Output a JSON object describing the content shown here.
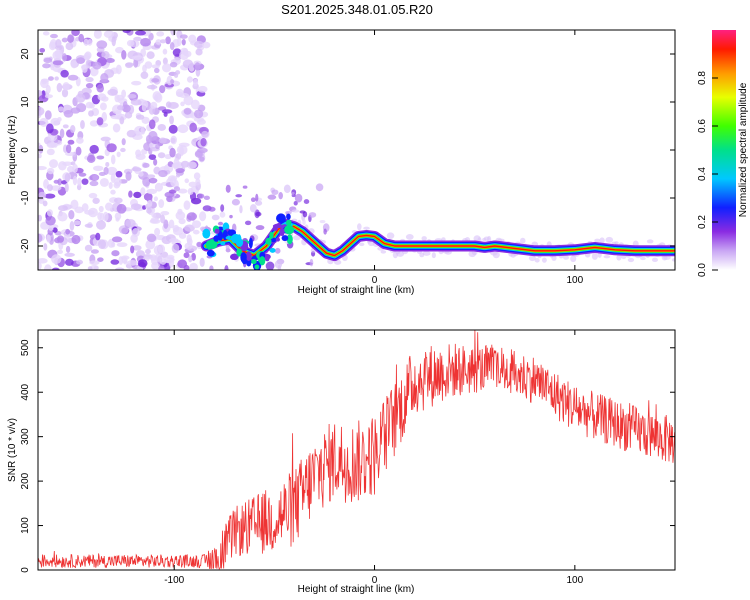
{
  "title": "S201.2025.348.01.05.R20",
  "chart_data": [
    {
      "type": "heatmap",
      "xlabel": "Height of straight line (km)",
      "ylabel": "Frequency (Hz)",
      "xlim": [
        -168,
        150
      ],
      "ylim": [
        -25,
        25
      ],
      "xticks": [
        -100,
        0,
        100
      ],
      "yticks": [
        -20,
        -10,
        0,
        10,
        20
      ],
      "colorbar": {
        "label": "Normalized spectral amplitude",
        "range": [
          0,
          1
        ],
        "ticks": [
          "0.0",
          "0.2",
          "0.4",
          "0.6",
          "0.8"
        ]
      },
      "ridge": {
        "x": [
          -84,
          -78,
          -72,
          -66,
          -60,
          -54,
          -48,
          -44,
          -40,
          -36,
          -32,
          -28,
          -24,
          -20,
          -16,
          -12,
          -8,
          -4,
          0,
          5,
          10,
          20,
          30,
          40,
          50,
          55,
          60,
          70,
          80,
          90,
          100,
          110,
          120,
          130,
          140,
          150
        ],
        "y": [
          -20,
          -19,
          -18.5,
          -21,
          -22,
          -20,
          -16.5,
          -15.5,
          -16,
          -17,
          -18.5,
          -20,
          -21.5,
          -22,
          -21,
          -19.5,
          -18,
          -17.8,
          -18,
          -19.5,
          -20,
          -20,
          -20,
          -20,
          -20,
          -20.3,
          -20,
          -20.5,
          -21,
          -21,
          -20.8,
          -20.3,
          -20.8,
          -21,
          -21,
          -21
        ]
      },
      "noise_region": {
        "x": [
          -168,
          -84
        ],
        "y": [
          -25,
          25
        ]
      }
    },
    {
      "type": "line",
      "xlabel": "Height of straight line (km)",
      "ylabel": "SNR (10 * v/v)",
      "xlim": [
        -168,
        150
      ],
      "ylim": [
        0,
        540
      ],
      "xticks": [
        -100,
        0,
        100
      ],
      "yticks": [
        0,
        100,
        200,
        300,
        400,
        500
      ],
      "color": "#ee3333",
      "envelope": {
        "x": [
          -168,
          -140,
          -110,
          -85,
          -78,
          -70,
          -60,
          -50,
          -40,
          -30,
          -20,
          -10,
          0,
          10,
          20,
          30,
          40,
          50,
          60,
          70,
          80,
          90,
          100,
          110,
          120,
          130,
          140,
          150
        ],
        "y": [
          20,
          20,
          20,
          20,
          30,
          85,
          100,
          115,
          140,
          210,
          250,
          240,
          260,
          340,
          425,
          440,
          450,
          450,
          455,
          440,
          430,
          395,
          365,
          345,
          330,
          315,
          300,
          290
        ]
      },
      "noise_amplitude": {
        "x": [
          -168,
          -85,
          -80,
          -40,
          0,
          50,
          100,
          150
        ],
        "y": [
          15,
          15,
          45,
          90,
          95,
          55,
          55,
          55
        ]
      }
    }
  ]
}
